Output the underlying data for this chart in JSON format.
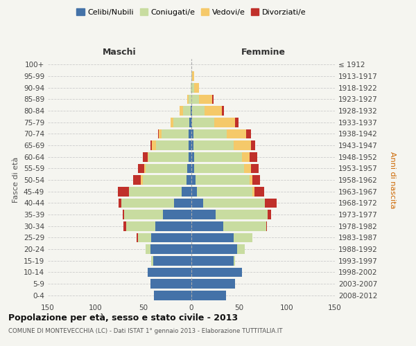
{
  "age_groups": [
    "0-4",
    "5-9",
    "10-14",
    "15-19",
    "20-24",
    "25-29",
    "30-34",
    "35-39",
    "40-44",
    "45-49",
    "50-54",
    "55-59",
    "60-64",
    "65-69",
    "70-74",
    "75-79",
    "80-84",
    "85-89",
    "90-94",
    "95-99",
    "100+"
  ],
  "birth_years": [
    "2008-2012",
    "2003-2007",
    "1998-2002",
    "1993-1997",
    "1988-1992",
    "1983-1987",
    "1978-1982",
    "1973-1977",
    "1968-1972",
    "1963-1967",
    "1958-1962",
    "1953-1957",
    "1948-1952",
    "1943-1947",
    "1938-1942",
    "1933-1937",
    "1928-1932",
    "1923-1927",
    "1918-1922",
    "1913-1917",
    "≤ 1912"
  ],
  "male": {
    "celibe": [
      39,
      43,
      46,
      40,
      43,
      42,
      38,
      30,
      18,
      10,
      5,
      4,
      3,
      3,
      3,
      2,
      1,
      0,
      0,
      0,
      0
    ],
    "coniugato": [
      0,
      0,
      0,
      2,
      5,
      14,
      30,
      40,
      55,
      55,
      46,
      44,
      42,
      34,
      28,
      17,
      8,
      3,
      1,
      0,
      0
    ],
    "vedovo": [
      0,
      0,
      0,
      0,
      0,
      0,
      0,
      0,
      0,
      0,
      2,
      1,
      1,
      4,
      3,
      3,
      3,
      1,
      0,
      0,
      0
    ],
    "divorziato": [
      0,
      0,
      0,
      0,
      0,
      1,
      3,
      2,
      3,
      12,
      8,
      7,
      5,
      2,
      1,
      0,
      0,
      0,
      0,
      0,
      0
    ]
  },
  "female": {
    "nubile": [
      36,
      46,
      53,
      44,
      48,
      44,
      33,
      25,
      12,
      6,
      4,
      3,
      3,
      2,
      2,
      1,
      1,
      0,
      0,
      0,
      0
    ],
    "coniugata": [
      0,
      0,
      0,
      2,
      8,
      20,
      45,
      55,
      65,
      58,
      57,
      52,
      50,
      42,
      35,
      23,
      13,
      8,
      3,
      1,
      0
    ],
    "vedova": [
      0,
      0,
      0,
      0,
      0,
      0,
      0,
      0,
      0,
      2,
      3,
      7,
      8,
      18,
      20,
      22,
      18,
      14,
      5,
      2,
      0
    ],
    "divorziata": [
      0,
      0,
      0,
      0,
      0,
      0,
      1,
      3,
      12,
      10,
      8,
      8,
      8,
      5,
      5,
      3,
      2,
      1,
      0,
      0,
      0
    ]
  },
  "colors": {
    "celibe_nubile": "#4472a8",
    "coniugato": "#c8dca0",
    "vedovo": "#f5c96a",
    "divorziato": "#c0302a"
  },
  "xlim": 150,
  "title": "Popolazione per età, sesso e stato civile - 2013",
  "subtitle": "COMUNE DI MONTEVECCHIA (LC) - Dati ISTAT 1° gennaio 2013 - Elaborazione TUTTITALIA.IT",
  "ylabel_left": "Fasce di età",
  "ylabel_right": "Anni di nascita",
  "xlabel_maschi": "Maschi",
  "xlabel_femmine": "Femmine",
  "background_color": "#f5f5f0",
  "grid_color": "#cccccc"
}
